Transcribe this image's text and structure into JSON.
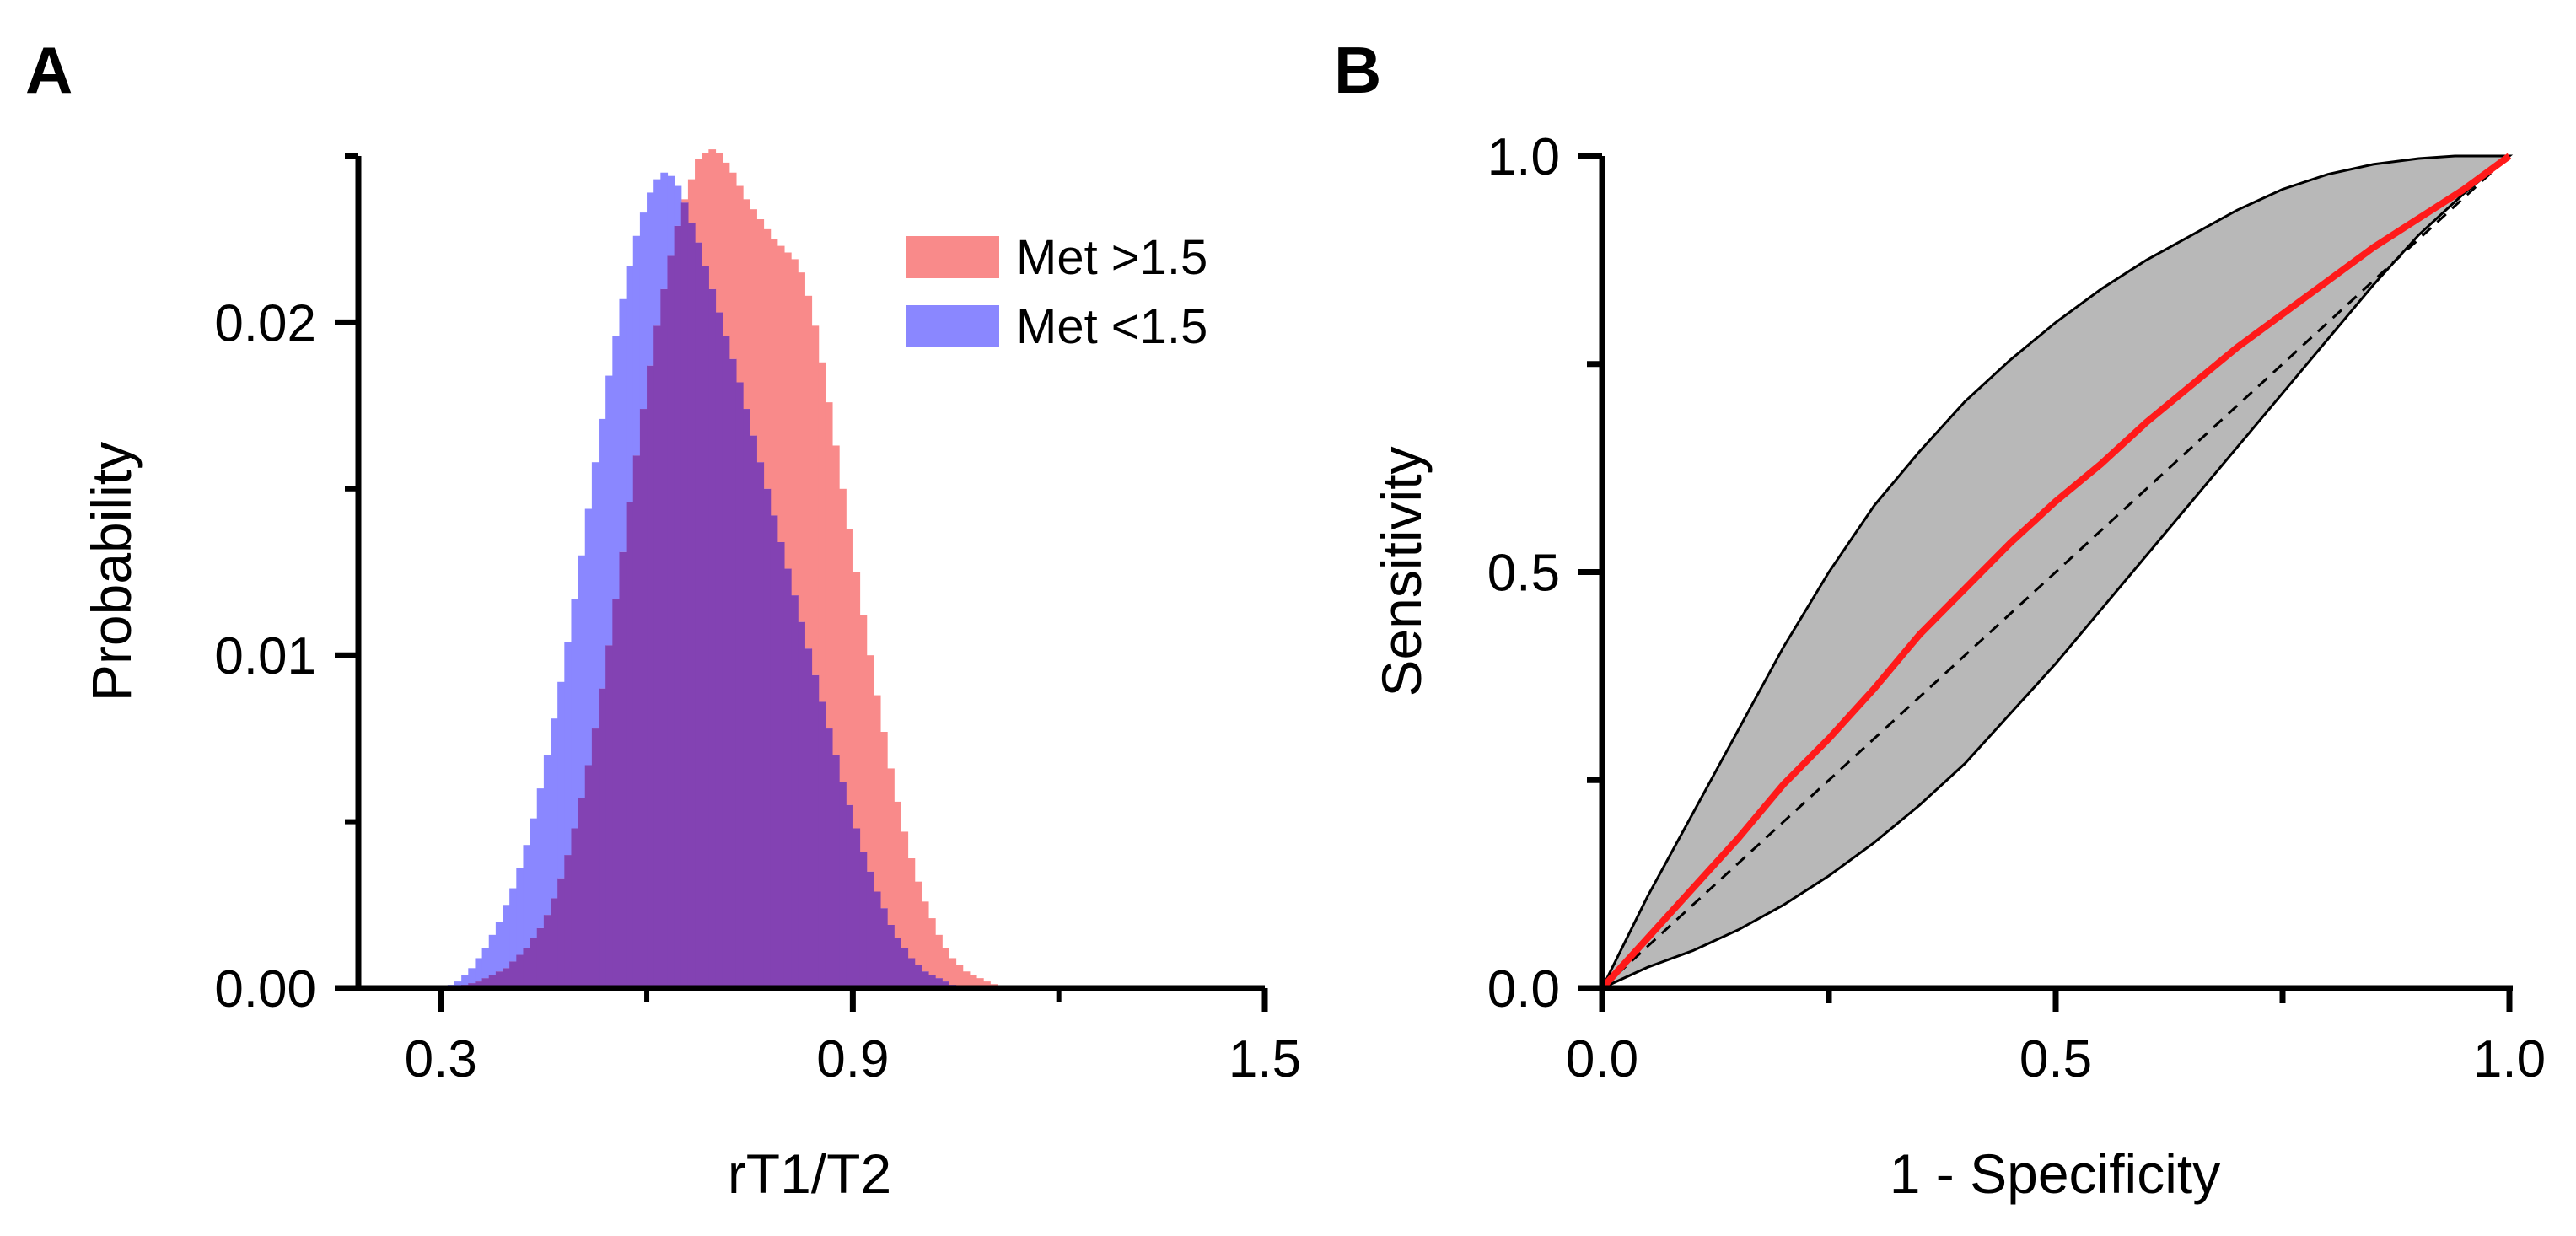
{
  "chart_data": [
    {
      "panel": "A",
      "type": "histogram",
      "xlabel": "rT1/T2",
      "ylabel": "Probability",
      "xlim": [
        0.18,
        1.5
      ],
      "ylim": [
        0,
        0.025
      ],
      "xticks": [
        0.3,
        0.9,
        1.5
      ],
      "xtick_labels": [
        "0.3",
        "0.9",
        "1.5"
      ],
      "yticks": [
        0,
        0.01,
        0.02
      ],
      "ytick_labels": [
        "0.00",
        "0.01",
        "0.02"
      ],
      "legend_location": "top-right",
      "series": [
        {
          "name": "Met >1.5",
          "color": "#f98a8a",
          "bin_start": 0.31,
          "bin_width": 0.01,
          "values": [
            2e-05,
            5e-05,
            0.0001,
            0.00015,
            0.0002,
            0.0003,
            0.0004,
            0.0005,
            0.0006,
            0.0008,
            0.001,
            0.0012,
            0.0015,
            0.0018,
            0.0022,
            0.0027,
            0.0033,
            0.004,
            0.0048,
            0.0057,
            0.0067,
            0.0078,
            0.009,
            0.0103,
            0.0117,
            0.0131,
            0.0146,
            0.016,
            0.0174,
            0.0187,
            0.0199,
            0.021,
            0.022,
            0.0229,
            0.0237,
            0.0243,
            0.0249,
            0.0251,
            0.0252,
            0.0251,
            0.0248,
            0.0245,
            0.0241,
            0.0237,
            0.0234,
            0.0231,
            0.0228,
            0.0225,
            0.0223,
            0.0221,
            0.0219,
            0.0215,
            0.0208,
            0.0199,
            0.0188,
            0.0176,
            0.0163,
            0.015,
            0.0138,
            0.0125,
            0.0112,
            0.01,
            0.0088,
            0.0077,
            0.0066,
            0.0056,
            0.0047,
            0.0039,
            0.0032,
            0.0026,
            0.0021,
            0.0016,
            0.0012,
            0.0009,
            0.0007,
            0.0005,
            0.0004,
            0.0003,
            0.0002,
            0.00012,
            7e-05,
            4e-05
          ]
        },
        {
          "name": "Met <1.5",
          "color": "#8a87ff",
          "bin_start": 0.31,
          "bin_width": 0.01,
          "values": [
            0.0001,
            0.0002,
            0.0004,
            0.0006,
            0.0009,
            0.0012,
            0.0016,
            0.002,
            0.0025,
            0.003,
            0.0036,
            0.0043,
            0.0051,
            0.006,
            0.007,
            0.0081,
            0.0092,
            0.0104,
            0.0117,
            0.013,
            0.0144,
            0.0158,
            0.0171,
            0.0184,
            0.0196,
            0.0207,
            0.0217,
            0.0226,
            0.0233,
            0.0239,
            0.0243,
            0.0245,
            0.0244,
            0.0241,
            0.0236,
            0.023,
            0.0224,
            0.0217,
            0.021,
            0.0203,
            0.0196,
            0.0189,
            0.0182,
            0.0174,
            0.0166,
            0.0158,
            0.015,
            0.0142,
            0.0134,
            0.0126,
            0.0118,
            0.011,
            0.0102,
            0.0094,
            0.0086,
            0.0078,
            0.007,
            0.0062,
            0.0055,
            0.0048,
            0.0041,
            0.0035,
            0.0029,
            0.0024,
            0.0019,
            0.0015,
            0.0012,
            0.0009,
            0.0007,
            0.0005,
            0.0004,
            0.0003,
            0.0002,
            0.0001,
            6e-05,
            3e-05,
            1e-05,
            0,
            0,
            0,
            0,
            0
          ]
        }
      ],
      "overlap_color": "#8342b3"
    },
    {
      "panel": "B",
      "type": "roc",
      "xlabel": "1 - Specificity",
      "ylabel": "Sensitivity",
      "xlim": [
        0,
        1
      ],
      "ylim": [
        0,
        1
      ],
      "xticks": [
        0,
        0.25,
        0.5,
        0.75,
        1
      ],
      "xtick_labels": [
        "0.0",
        "",
        "0.5",
        "",
        "1.0"
      ],
      "yticks": [
        0,
        0.25,
        0.5,
        0.75,
        1
      ],
      "ytick_labels": [
        "0.0",
        "",
        "0.5",
        "",
        "1.0"
      ],
      "roc_curve": {
        "name": "ROC",
        "color": "#ff1a1a",
        "x": [
          0,
          0.05,
          0.1,
          0.15,
          0.2,
          0.25,
          0.3,
          0.35,
          0.4,
          0.45,
          0.5,
          0.55,
          0.6,
          0.65,
          0.7,
          0.75,
          0.8,
          0.85,
          0.9,
          0.95,
          1.0
        ],
        "y": [
          0,
          0.06,
          0.12,
          0.18,
          0.245,
          0.3,
          0.36,
          0.425,
          0.48,
          0.535,
          0.585,
          0.63,
          0.68,
          0.725,
          0.77,
          0.81,
          0.85,
          0.89,
          0.925,
          0.96,
          1.0
        ]
      },
      "confidence_band": {
        "fill": "#b8b8b8",
        "upper_x": [
          0,
          0.05,
          0.1,
          0.15,
          0.2,
          0.25,
          0.3,
          0.35,
          0.4,
          0.45,
          0.5,
          0.55,
          0.6,
          0.65,
          0.7,
          0.75,
          0.8,
          0.85,
          0.9,
          0.94,
          1.0
        ],
        "upper_y": [
          0,
          0.11,
          0.21,
          0.31,
          0.41,
          0.5,
          0.58,
          0.645,
          0.705,
          0.755,
          0.8,
          0.84,
          0.875,
          0.905,
          0.935,
          0.96,
          0.978,
          0.99,
          0.997,
          1.0,
          1.0
        ],
        "lower_x": [
          0,
          0.05,
          0.1,
          0.15,
          0.2,
          0.25,
          0.3,
          0.35,
          0.4,
          0.45,
          0.5,
          0.55,
          0.6,
          0.65,
          0.7,
          0.75,
          0.8,
          0.85,
          0.9,
          0.95,
          1.0
        ],
        "lower_y": [
          0,
          0.025,
          0.045,
          0.07,
          0.1,
          0.135,
          0.175,
          0.22,
          0.27,
          0.33,
          0.39,
          0.455,
          0.52,
          0.585,
          0.65,
          0.715,
          0.78,
          0.845,
          0.905,
          0.955,
          1.0
        ]
      },
      "reference_line": {
        "x": [
          0,
          1
        ],
        "y": [
          0,
          1
        ],
        "style": "dashed"
      }
    }
  ]
}
